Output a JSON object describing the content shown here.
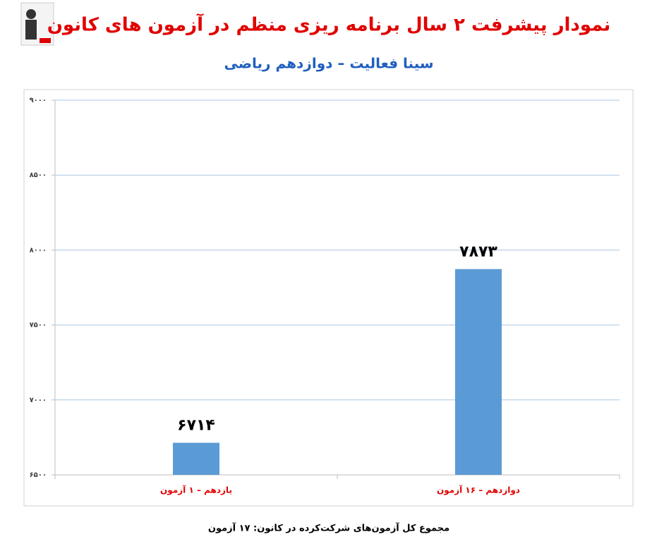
{
  "chart_data": {
    "type": "bar",
    "title": "نمودار پیشرفت ۲ سال برنامه ریزی منظم در آزمون های کانون",
    "subtitle": "سینا فعالیت – دوازدهم ریاضی",
    "categories": [
      "یازدهم – ۱ آزمون",
      "دوازدهم – ۱۶ آزمون"
    ],
    "values": [
      6714,
      7873
    ],
    "value_labels": [
      "۶۷۱۴",
      "۷۸۷۳"
    ],
    "color": "#5b9bd5",
    "ylim": [
      6500,
      9000
    ],
    "yticks": [
      {
        "value": 6500,
        "label": "۶۵۰۰"
      },
      {
        "value": 7000,
        "label": "۷۰۰۰"
      },
      {
        "value": 7500,
        "label": "۷۵۰۰"
      },
      {
        "value": 8000,
        "label": "۸۰۰۰"
      },
      {
        "value": 8500,
        "label": "۸۵۰۰"
      },
      {
        "value": 9000,
        "label": "۹۰۰۰"
      }
    ],
    "grid": true,
    "footer": "مجموع کل آزمون‌های شرکت‌کرده در کانون: ۱۷ آزمون"
  }
}
